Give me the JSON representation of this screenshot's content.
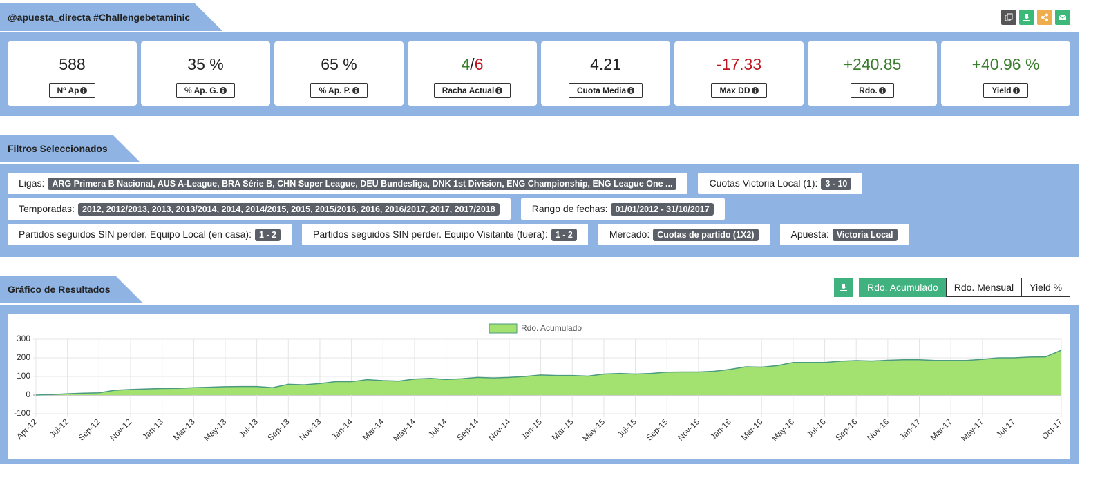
{
  "header": {
    "title": "@apuesta_directa #Challengebetaminic"
  },
  "stats": [
    {
      "value": "588",
      "label": "Nº Ap",
      "color": "#222222"
    },
    {
      "value": "35 %",
      "label": "% Ap. G.",
      "color": "#222222"
    },
    {
      "value": "65 %",
      "label": "% Ap. P.",
      "color": "#222222"
    },
    {
      "parts": [
        {
          "text": "4",
          "color": "#3a7d2c"
        },
        {
          "text": "/",
          "color": "#222222"
        },
        {
          "text": "6",
          "color": "#c0141c"
        }
      ],
      "label": "Racha Actual"
    },
    {
      "value": "4.21",
      "label": "Cuota Media",
      "color": "#222222"
    },
    {
      "value": "-17.33",
      "label": "Max DD",
      "color": "#c0141c"
    },
    {
      "value": "+240.85",
      "label": "Rdo.",
      "color": "#3a7d2c"
    },
    {
      "value": "+40.96 %",
      "label": "Yield",
      "color": "#3a7d2c"
    }
  ],
  "filters": {
    "title": "Filtros Seleccionados",
    "rows": [
      [
        {
          "label": "Ligas:",
          "value": "ARG Primera B Nacional, AUS A-League, BRA Série B, CHN Super League, DEU Bundesliga, DNK 1st Division, ENG Championship, ENG League One ..."
        },
        {
          "label": "Cuotas Victoria Local (1):",
          "value": "3 - 10"
        }
      ],
      [
        {
          "label": "Temporadas:",
          "value": "2012, 2012/2013, 2013, 2013/2014, 2014, 2014/2015, 2015, 2015/2016, 2016, 2016/2017, 2017, 2017/2018"
        },
        {
          "label": "Rango de fechas:",
          "value": "01/01/2012 - 31/10/2017"
        }
      ],
      [
        {
          "label": "Partidos seguidos SIN perder. Equipo Local (en casa):",
          "value": "1 - 2"
        },
        {
          "label": "Partidos seguidos SIN perder. Equipo Visitante (fuera):",
          "value": "1 - 2"
        },
        {
          "label": "Mercado:",
          "value": "Cuotas de partido (1X2)"
        },
        {
          "label": "Apuesta:",
          "value": "Victoria Local"
        }
      ]
    ]
  },
  "results": {
    "title": "Gráfico de Resultados",
    "tabs": [
      "Rdo. Acumulado",
      "Rdo. Mensual",
      "Yield %"
    ],
    "active_tab": 0
  },
  "chart_data": {
    "type": "area",
    "categories": [
      "Apr-12",
      null,
      "Jul-12",
      null,
      "Sep-12",
      null,
      "Nov-12",
      null,
      "Jan-13",
      null,
      "Mar-13",
      null,
      "May-13",
      null,
      "Jul-13",
      null,
      "Sep-13",
      null,
      "Nov-13",
      null,
      "Jan-14",
      null,
      "Mar-14",
      null,
      "May-14",
      null,
      "Jul-14",
      null,
      "Sep-14",
      null,
      "Nov-14",
      null,
      "Jan-15",
      null,
      "Mar-15",
      null,
      "May-15",
      null,
      "Jul-15",
      null,
      "Sep-15",
      null,
      "Nov-15",
      null,
      "Jan-16",
      null,
      "Mar-16",
      null,
      "May-16",
      null,
      "Jul-16",
      null,
      "Sep-16",
      null,
      "Nov-16",
      null,
      "Jan-17",
      null,
      "Mar-17",
      null,
      "May-17",
      null,
      "Jul-17",
      null,
      null,
      "Oct-17"
    ],
    "series": [
      {
        "name": "Rdo. Acumulado",
        "color": "#4a9a80",
        "fill": "#a3e270",
        "values": [
          0,
          3,
          7,
          10,
          12,
          26,
          30,
          33,
          35,
          36,
          40,
          42,
          45,
          46,
          46,
          40,
          58,
          55,
          62,
          72,
          72,
          83,
          78,
          75,
          86,
          90,
          84,
          88,
          95,
          92,
          95,
          100,
          108,
          105,
          105,
          102,
          113,
          116,
          113,
          116,
          123,
          124,
          124,
          128,
          138,
          152,
          150,
          158,
          175,
          175,
          175,
          182,
          185,
          183,
          187,
          190,
          190,
          186,
          186,
          186,
          192,
          200,
          200,
          204,
          205,
          241
        ]
      }
    ],
    "ylim": [
      -100,
      300
    ],
    "yticks": [
      -100,
      0,
      100,
      200,
      300
    ],
    "grid": true,
    "legend": "top"
  }
}
